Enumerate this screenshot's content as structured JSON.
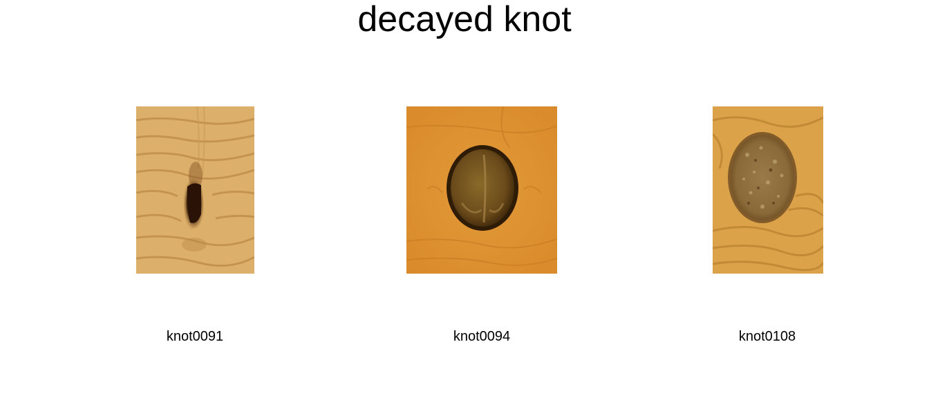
{
  "title": "decayed knot",
  "samples": [
    {
      "label": "knot0091",
      "base_color": "#d9ad66",
      "knot_color": "#3a1f0c"
    },
    {
      "label": "knot0094",
      "base_color": "#e09433",
      "knot_color": "#5a3a12"
    },
    {
      "label": "knot0108",
      "base_color": "#dca44a",
      "knot_color": "#8a6a38"
    }
  ]
}
